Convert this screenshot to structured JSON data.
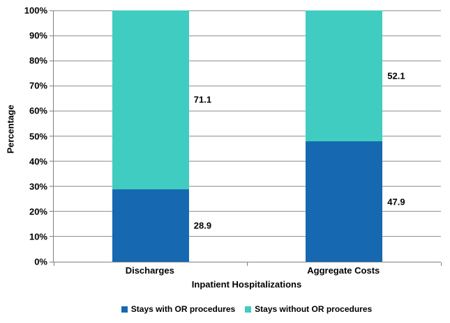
{
  "chart_data": {
    "type": "bar",
    "stacked": true,
    "title": "",
    "categories": [
      "Discharges",
      "Aggregate Costs"
    ],
    "series": [
      {
        "name": "Stays with OR procedures",
        "color": "#1668B1",
        "values": [
          28.9,
          47.9
        ],
        "labels": [
          "28.9",
          "47.9"
        ]
      },
      {
        "name": "Stays without OR procedures",
        "color": "#40CCC0",
        "values": [
          71.1,
          52.1
        ],
        "labels": [
          "71.1",
          "52.1"
        ]
      }
    ],
    "xlabel": "Inpatient Hospitalizations",
    "ylabel": "Percentage",
    "ylim": [
      0,
      100
    ],
    "ytick_step": 10,
    "ytick_labels": [
      "0%",
      "10%",
      "20%",
      "30%",
      "40%",
      "50%",
      "60%",
      "70%",
      "80%",
      "90%",
      "100%"
    ],
    "grid": true,
    "gridline_color": "#8F8F8F",
    "axis_color": "#808080",
    "text_color": "#000000",
    "legend_position": "bottom"
  }
}
